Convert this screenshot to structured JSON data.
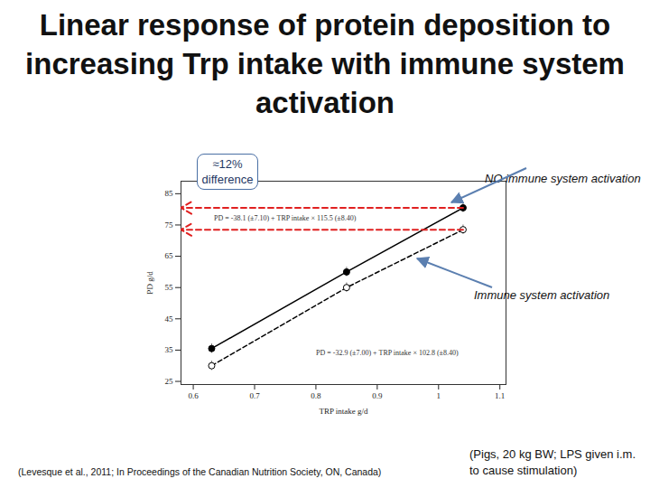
{
  "chart_data": {
    "type": "line",
    "title": "Linear response of protein deposition to increasing Trp intake with immune system activation",
    "x_label": "TRP intake g/d",
    "y_label": "PD g/d",
    "x": [
      0.63,
      0.85,
      1.04
    ],
    "series": [
      {
        "name": "NO immune system activation",
        "color": "#000000",
        "line_style": "solid",
        "marker": "filled circle",
        "values": [
          35.5,
          60,
          80.5
        ],
        "error": [
          1.5,
          1.5,
          1.5
        ],
        "equation": "PD = -38.1 (±7.10) + TRP intake × 115.5 (±8.40)"
      },
      {
        "name": "Immune system activation",
        "color": "#000000",
        "line_style": "dashed",
        "marker": "open circle",
        "values": [
          30,
          55,
          73.5
        ],
        "error": [
          1.5,
          1.5,
          1.5
        ],
        "equation": "PD = -32.9 (±7.00) + TRP intake × 102.8 (±8.40)"
      }
    ],
    "xlim": [
      0.58,
      1.11
    ],
    "xticks": [
      0.6,
      0.7,
      0.8,
      0.9,
      1,
      1.1
    ],
    "ylim": [
      24,
      89
    ],
    "yticks": [
      25,
      35,
      45,
      55,
      65,
      75,
      85
    ],
    "grid": false,
    "annotations": [
      "≈12% difference"
    ],
    "source": "(Levesque et al., 2011; In Proceedings of the Canadian Nutrition Society, ON, Canada)",
    "caption": "(Pigs, 20 kg BW; LPS given i.m. to cause stimulation)"
  }
}
